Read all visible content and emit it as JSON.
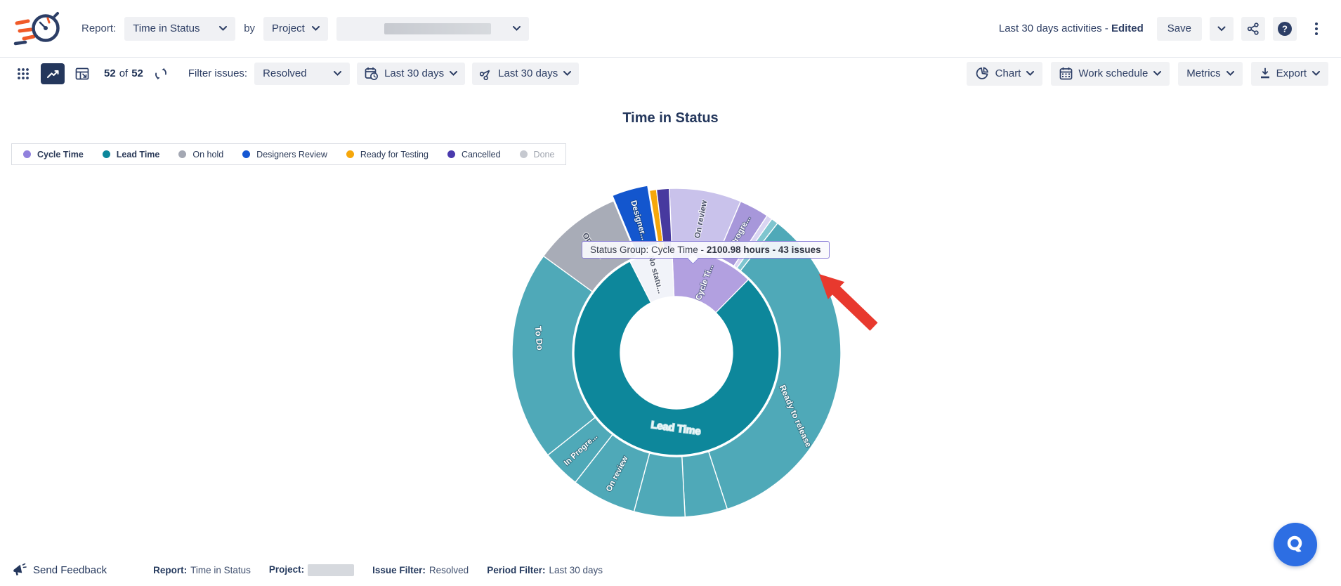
{
  "header": {
    "report_label": "Report:",
    "report_type": "Time in Status",
    "by_label": "by",
    "group_by": "Project",
    "project_value_redacted": true,
    "activities_prefix": "Last 30 days activities - ",
    "activities_state": "Edited",
    "save_label": "Save"
  },
  "toolbar": {
    "count": {
      "shown": "52",
      "of": "of",
      "total": "52"
    },
    "filter_label": "Filter issues:",
    "issue_filter": "Resolved",
    "date_filter": "Last 30 days",
    "trim_filter": "Last 30 days",
    "chart_button": "Chart",
    "work_schedule_button": "Work schedule",
    "metrics_button": "Metrics",
    "export_button": "Export"
  },
  "chart": {
    "title": "Time in Status"
  },
  "legend": {
    "items": [
      {
        "label": "Cycle Time",
        "color": "#9181dd",
        "bold": true,
        "disabled": false
      },
      {
        "label": "Lead Time",
        "color": "#0d879b",
        "bold": true,
        "disabled": false
      },
      {
        "label": "On hold",
        "color": "#a4a8b3",
        "bold": false,
        "disabled": false
      },
      {
        "label": "Designers Review",
        "color": "#1557d2",
        "bold": false,
        "disabled": false
      },
      {
        "label": "Ready for Testing",
        "color": "#f6a70b",
        "bold": false,
        "disabled": false
      },
      {
        "label": "Cancelled",
        "color": "#4a3aad",
        "bold": false,
        "disabled": false
      },
      {
        "label": "Done",
        "color": "#c6c9d0",
        "bold": false,
        "disabled": true
      }
    ]
  },
  "tooltip": {
    "prefix": "Status Group: Cycle Time - ",
    "bold": "2100.98 hours - 43 issues"
  },
  "chart_data": {
    "type": "sunburst",
    "title": "Time in Status",
    "hovered_segment": "Cycle Time",
    "hovered_value": {
      "hours": 2100.98,
      "issues": 43
    },
    "annotation": {
      "shape": "arrow",
      "color": "#e8392e",
      "points_to": "tooltip"
    },
    "rings": [
      {
        "name": "status-groups",
        "inner_r": 80,
        "outer_r": 146,
        "segments": [
          {
            "label": "Cycle Time",
            "display": "Cycle Ti...",
            "start": 357.5,
            "end": 404.5,
            "color": "#b2a0e0",
            "hours": 2100.98,
            "issues": 43,
            "label_angle": 22,
            "label_r": 108,
            "label_rotate": -70,
            "label_color": "#ffffff",
            "label_size": 11.5
          },
          {
            "label": "Lead Time",
            "display": "Lead Time",
            "start": 44.5,
            "end": 333,
            "color": "#0d879b",
            "label_angle": 180.5,
            "label_r": 108,
            "label_rotate": 8,
            "label_color": "#eaf6f8",
            "label_size": 14.5
          },
          {
            "label": "No status",
            "display": "No statu...",
            "start": 333,
            "end": 357.5,
            "color": "#f1f3f9",
            "label_angle": 345,
            "label_r": 115,
            "label_rotate": 75,
            "label_color": "#5b6272",
            "label_size": 11.5
          }
        ]
      },
      {
        "name": "statuses",
        "inner_r": 148,
        "outer_r": 234,
        "segments": [
          {
            "label": "On review",
            "display": "On review",
            "start": 357.5,
            "end": 383,
            "color": "#c9c2eb",
            "label_angle": 10.5,
            "label_r": 193,
            "label_rotate": -79,
            "label_color": "#4a5168",
            "label_size": 11.5
          },
          {
            "label": "In Progress",
            "display": "Progre...",
            "start": 383,
            "end": 393.5,
            "color": "#a797da",
            "label_angle": 388,
            "label_r": 196,
            "label_rotate": -62,
            "label_color": "#ffffff",
            "label_size": 11.5
          },
          {
            "label": "",
            "display": "",
            "start": 33.5,
            "end": 35.5,
            "color": "#d9d5f2"
          },
          {
            "label": "",
            "display": "",
            "start": 35.5,
            "end": 38,
            "color": "#7fc5cf"
          },
          {
            "label": "Ready to release",
            "display": "Ready to release",
            "start": 38,
            "end": 162,
            "color": "#4fa9b8",
            "label_angle": 118,
            "label_r": 192,
            "label_rotate": 66,
            "label_color": "#ffffff",
            "label_size": 12
          },
          {
            "label": "",
            "display": "",
            "start": 162,
            "end": 177,
            "color": "#4fa9b8"
          },
          {
            "label": "",
            "display": "",
            "start": 177,
            "end": 195,
            "color": "#4fa9b8"
          },
          {
            "label": "On review (lead)",
            "display": "On review",
            "start": 195,
            "end": 218,
            "color": "#4fa9b8",
            "label_angle": 206,
            "label_r": 192,
            "label_rotate": -63,
            "label_color": "#ffffff",
            "label_size": 11.5
          },
          {
            "label": "In Progress (lead)",
            "display": "In Progre...",
            "start": 218,
            "end": 231.5,
            "color": "#4fa9b8",
            "label_angle": 224.5,
            "label_r": 194,
            "label_rotate": -43,
            "label_color": "#ffffff",
            "label_size": 11.5
          },
          {
            "label": "To Do",
            "display": "To Do",
            "start": 231.5,
            "end": 306,
            "color": "#4fa9b8",
            "label_angle": 276,
            "label_r": 197,
            "label_rotate": 85,
            "label_color": "#ffffff",
            "label_size": 12.5
          },
          {
            "label": "On hold",
            "display": "On ho...",
            "start": 306,
            "end": 337.5,
            "color": "#a8acb7",
            "label_angle": 322,
            "label_r": 193,
            "label_rotate": 52,
            "label_color": "#454c60",
            "label_size": 11.5
          },
          {
            "label": "Designers Review",
            "display": "Designer...",
            "start": 337.5,
            "end": 350.5,
            "color": "#1356ce",
            "offset": 8,
            "label_angle": 344,
            "label_r": 196,
            "label_rotate": 74,
            "label_color": "#ffffff",
            "label_size": 11.5
          },
          {
            "label": "Ready for Testing",
            "display": "",
            "start": 350.5,
            "end": 353,
            "color": "#f6a70b"
          },
          {
            "label": "Cancelled",
            "display": "",
            "start": 353,
            "end": 357.5,
            "color": "#47399f"
          }
        ]
      }
    ]
  },
  "footer": {
    "send_feedback": "Send Feedback",
    "meta": [
      {
        "label": "Report:",
        "value": "Time in Status",
        "redacted": false
      },
      {
        "label": "Project:",
        "value": "",
        "redacted": true
      },
      {
        "label": "Issue Filter:",
        "value": "Resolved",
        "redacted": false
      },
      {
        "label": "Period Filter:",
        "value": "Last 30 days",
        "redacted": false
      }
    ]
  },
  "icons": {
    "logo": "stopwatch-icon",
    "share": "share-icon",
    "help": "question-icon",
    "more": "kebab-icon",
    "grid": "grid-dots-icon",
    "chart_view": "trend-chart-icon",
    "pivot": "pivot-table-icon",
    "refresh": "refresh-icon",
    "date": "calendar-clock-icon",
    "trim": "scissors-icon",
    "chart_menu": "pie-chart-icon",
    "work_schedule": "calendar-icon",
    "export": "download-icon",
    "feedback": "megaphone-icon",
    "fab": "search-bubble-icon"
  },
  "colors": {
    "accent_navy": "#24375c",
    "button_bg": "#f1f2f4",
    "fab_blue": "#2d6ee3",
    "arrow_red": "#e8392e",
    "tooltip_border": "#8b7fd7",
    "lead_time": "#0d879b",
    "cycle_time": "#b2a0e0",
    "outer_teal": "#4fa9b8"
  }
}
